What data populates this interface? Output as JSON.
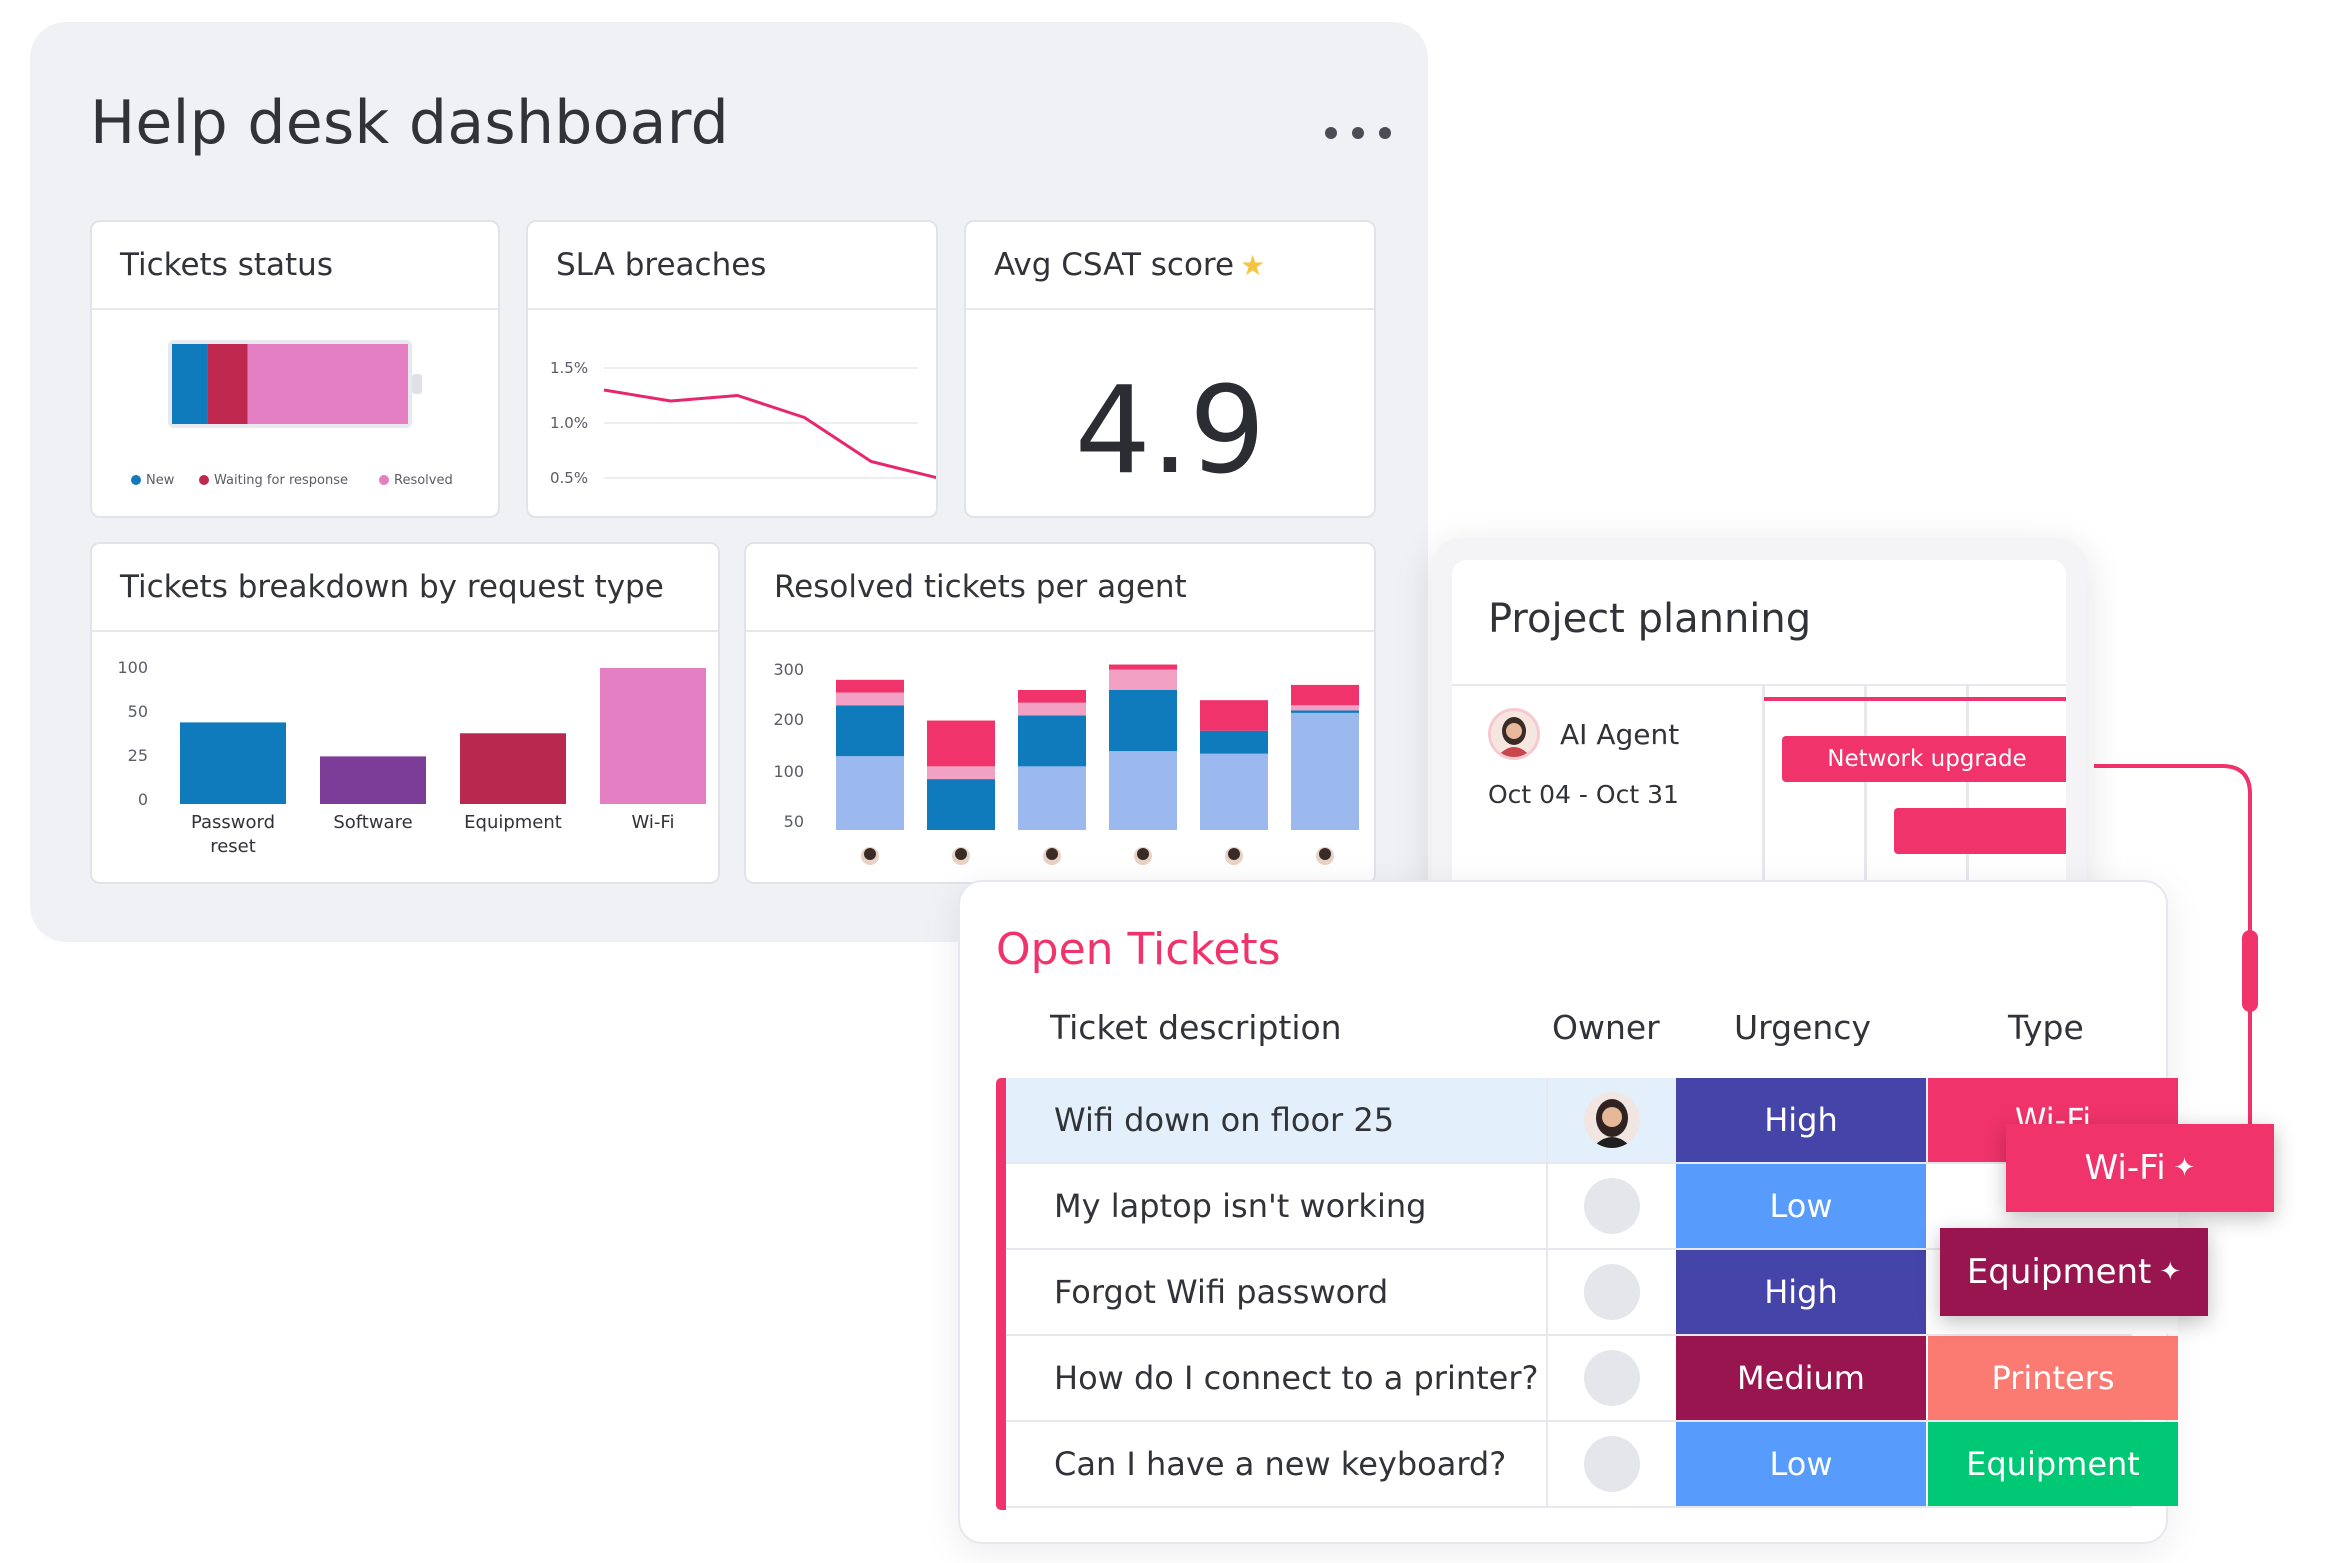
{
  "dashboard": {
    "title": "Help desk dashboard",
    "menu_icon": "more-horizontal-icon"
  },
  "tickets_status": {
    "title": "Tickets status",
    "legend": [
      "New",
      "Waiting for response",
      "Resolved"
    ],
    "colors": [
      "#0f7bbd",
      "#c0294f",
      "#e47fc3"
    ],
    "shares": [
      0.15,
      0.17,
      0.68
    ]
  },
  "sla": {
    "title": "SLA breaches",
    "chart_data": {
      "type": "line",
      "x": [
        1,
        2,
        3,
        4,
        5,
        6
      ],
      "y": [
        1.3,
        1.2,
        1.25,
        1.05,
        0.65,
        0.5
      ],
      "yticks": [
        "1.5%",
        "1.0%",
        "0.5%"
      ],
      "ylim": [
        0.3,
        1.7
      ],
      "color": "#e8266d"
    }
  },
  "csat": {
    "title": "Avg CSAT score",
    "star_icon": "star-icon",
    "value": "4.9"
  },
  "breakdown": {
    "title": "Tickets breakdown by request type",
    "chart_data": {
      "type": "bar",
      "categories": [
        "Password reset",
        "Software",
        "Equipment",
        "Wi-Fi"
      ],
      "category_lines": [
        [
          "Password",
          "reset"
        ],
        [
          "Software"
        ],
        [
          "Equipment"
        ],
        [
          "Wi-Fi"
        ]
      ],
      "values": [
        60,
        35,
        52,
        100
      ],
      "yticks": [
        "100",
        "50",
        "25",
        "0"
      ],
      "colors": [
        "#0f7bbd",
        "#7c3d98",
        "#b9284f",
        "#e47fc3"
      ]
    }
  },
  "per_agent": {
    "title": "Resolved tickets per agent",
    "chart_data": {
      "type": "bar",
      "stacked": true,
      "yticks": [
        "300",
        "200",
        "100",
        "50"
      ],
      "agents": 6,
      "series": [
        {
          "color": "#9bb9ef",
          "values": [
            145,
            0,
            125,
            155,
            150,
            230
          ]
        },
        {
          "color": "#0f7bbd",
          "values": [
            100,
            100,
            100,
            120,
            45,
            5
          ]
        },
        {
          "color": "#f2a0c4",
          "values": [
            25,
            25,
            25,
            40,
            0,
            10
          ]
        },
        {
          "color": "#f0336b",
          "values": [
            25,
            90,
            25,
            10,
            60,
            40
          ]
        }
      ],
      "ymax": 330
    }
  },
  "project": {
    "title": "Project planning",
    "agent_name": "AI Agent",
    "dates": "Oct 04 - Oct 31",
    "bar_label": "Network upgrade"
  },
  "open_tickets": {
    "title": "Open Tickets",
    "headers": {
      "description": "Ticket description",
      "owner": "Owner",
      "urgency": "Urgency",
      "type": "Type"
    },
    "rows": [
      {
        "description": "Wifi down on floor 25",
        "urgency": "High",
        "urgency_color": "#4544a8",
        "type": "Wi-Fi",
        "type_color": "#f0336b"
      },
      {
        "description": "My laptop isn't working",
        "urgency": "Low",
        "urgency_color": "#579bfc",
        "type": "",
        "type_color": "#ffffff"
      },
      {
        "description": "Forgot Wifi password",
        "urgency": "High",
        "urgency_color": "#4544a8",
        "type": "",
        "type_color": "#ffffff"
      },
      {
        "description": "How do I connect to a printer?",
        "urgency": "Medium",
        "urgency_color": "#99154f",
        "type": "Printers",
        "type_color": "#fb7a72"
      },
      {
        "description": "Can I have a new keyboard?",
        "urgency": "Low",
        "urgency_color": "#579bfc",
        "type": "Equipment",
        "type_color": "#01c874"
      }
    ],
    "float_tags": [
      {
        "label": "Wi-Fi",
        "color": "#f0336b",
        "icon": "sparkle-icon"
      },
      {
        "label": "Equipment",
        "color": "#99154f",
        "icon": "sparkle-icon"
      }
    ]
  }
}
